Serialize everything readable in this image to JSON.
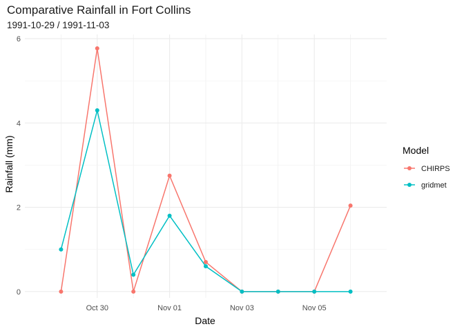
{
  "chart_data": {
    "type": "line",
    "title": "Comparative Rainfall in Fort Collins",
    "subtitle": "1991-10-29 / 1991-11-03",
    "xlabel": "Date",
    "ylabel": "Rainfall (mm)",
    "x": [
      "1991-10-29",
      "1991-10-30",
      "1991-10-31",
      "1991-11-01",
      "1991-11-02",
      "1991-11-03",
      "1991-11-04",
      "1991-11-05",
      "1991-11-06"
    ],
    "x_ticks": [
      {
        "date": "1991-10-30",
        "label": "Oct 30"
      },
      {
        "date": "1991-11-01",
        "label": "Nov 01"
      },
      {
        "date": "1991-11-03",
        "label": "Nov 03"
      },
      {
        "date": "1991-11-05",
        "label": "Nov 05"
      }
    ],
    "xlim": [
      "1991-10-28",
      "1991-11-07"
    ],
    "ylim": [
      -0.15,
      6.1
    ],
    "y_ticks": [
      0,
      2,
      4,
      6
    ],
    "grid": true,
    "legend": {
      "title": "Model",
      "position": "right"
    },
    "series": [
      {
        "name": "CHIRPS",
        "color": "#F8766D",
        "values": [
          0,
          5.77,
          0,
          2.75,
          0.7,
          0,
          0,
          0,
          2.04
        ]
      },
      {
        "name": "gridmet",
        "color": "#00BFC4",
        "values": [
          1.0,
          4.3,
          0.4,
          1.8,
          0.6,
          0,
          0,
          0,
          0
        ]
      }
    ]
  }
}
